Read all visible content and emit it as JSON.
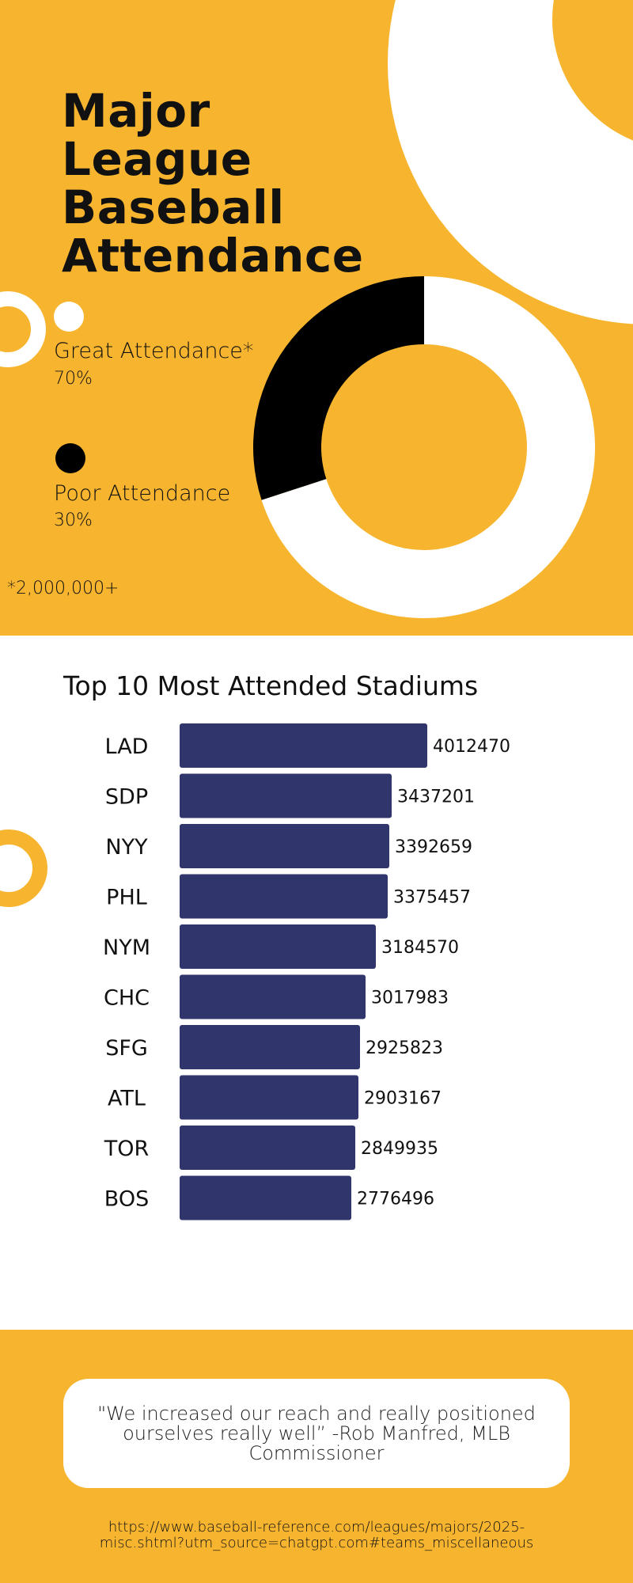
{
  "colors": {
    "background_yellow": "#F7B52F",
    "bar_navy": "#30356B",
    "great_slice": "#ffffff",
    "poor_slice": "#000000"
  },
  "header": {
    "title_line1": "Major League",
    "title_line2": "Baseball",
    "title_line3": "Attendance"
  },
  "legend": {
    "great_label": "Great Attendance*",
    "great_pct": "70%",
    "poor_label": "Poor Attendance",
    "poor_pct": "30%",
    "footnote": "*2,000,000+"
  },
  "bar_chart": {
    "title": "Top 10 Most Attended Stadiums"
  },
  "quote": {
    "text": "\"We  increased our reach and really positioned ourselves really well” -Rob Manfred, MLB Commissioner"
  },
  "source": {
    "url": "https://www.baseball-reference.com/leagues/majors/2025-misc.shtml?utm_source=chatgpt.com#teams_miscellaneous"
  },
  "chart_data": [
    {
      "type": "pie",
      "variant": "donut",
      "title": "",
      "slices": [
        {
          "label": "Great Attendance*",
          "value": 70,
          "color": "#ffffff"
        },
        {
          "label": "Poor Attendance",
          "value": 30,
          "color": "#000000"
        }
      ]
    },
    {
      "type": "bar",
      "orientation": "horizontal",
      "title": "Top 10 Most Attended Stadiums",
      "xlabel": "",
      "ylabel": "",
      "categories": [
        "LAD",
        "SDP",
        "NYY",
        "PHL",
        "NYM",
        "CHC",
        "SFG",
        "ATL",
        "TOR",
        "BOS"
      ],
      "values": [
        4012470,
        3437201,
        3392659,
        3375457,
        3184570,
        3017983,
        2925823,
        2903167,
        2849935,
        2776496
      ],
      "data_labels": [
        "4012470",
        "3437201",
        "3392659",
        "3375457",
        "3184570",
        "3017983",
        "2925823",
        "2903167",
        "2849935",
        "2776496"
      ],
      "grid": false,
      "legend": "none"
    }
  ]
}
